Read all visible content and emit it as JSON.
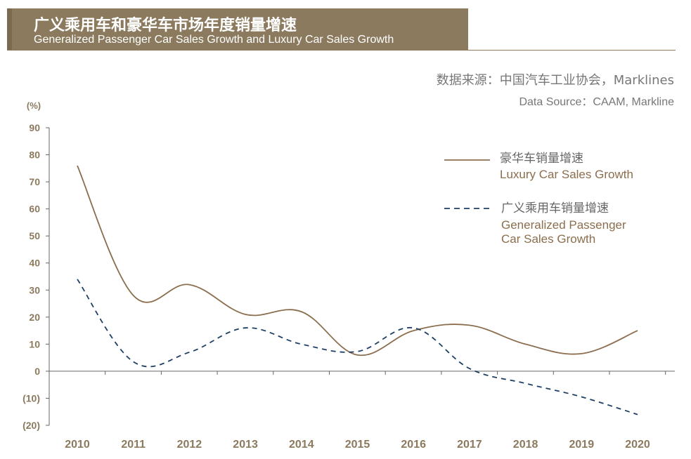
{
  "header": {
    "title_cn": "广义乘用车和豪华车市场年度销量增速",
    "title_en": "Generalized Passenger Car Sales Growth and Luxury Car Sales Growth"
  },
  "source": {
    "cn": "数据来源：中国汽车工业协会，Marklines",
    "en": "Data Source：CAAM, Markline"
  },
  "colors": {
    "brand": "#8b7a5e",
    "luxury": "#8b6e4e",
    "passenger": "#1f3f66",
    "axis": "#666666",
    "text": "#777777"
  },
  "chart_data": {
    "type": "line",
    "title": "广义乘用车和豪华车市场年度销量增速",
    "ylabel": "(%)",
    "xlabel": "",
    "ylim": [
      -20,
      90
    ],
    "yticks": [
      90,
      80,
      70,
      60,
      50,
      40,
      30,
      20,
      10,
      0,
      -10,
      -20
    ],
    "ytick_labels": [
      "90",
      "80",
      "70",
      "60",
      "50",
      "40",
      "30",
      "20",
      "10",
      "0",
      "(10)",
      "(20)"
    ],
    "categories": [
      "2010",
      "2011",
      "2012",
      "2013",
      "2014",
      "2015",
      "2016",
      "2017",
      "2018",
      "2019",
      "2020"
    ],
    "grid": false,
    "legend_position": "top-right",
    "series": [
      {
        "name": "豪华车销量增速",
        "name_en": "Luxury Car Sales Growth",
        "style": "solid",
        "values": [
          76,
          28,
          32,
          21,
          22,
          6,
          15,
          17,
          10,
          6.5,
          15
        ]
      },
      {
        "name": "广义乘用车销量增速",
        "name_en_lines": [
          "Generalized Passenger",
          "Car Sales Growth"
        ],
        "style": "dashed",
        "values": [
          34,
          3.5,
          7,
          16,
          10,
          7.3,
          16,
          1,
          -4.5,
          -9.5,
          -16
        ]
      }
    ]
  }
}
